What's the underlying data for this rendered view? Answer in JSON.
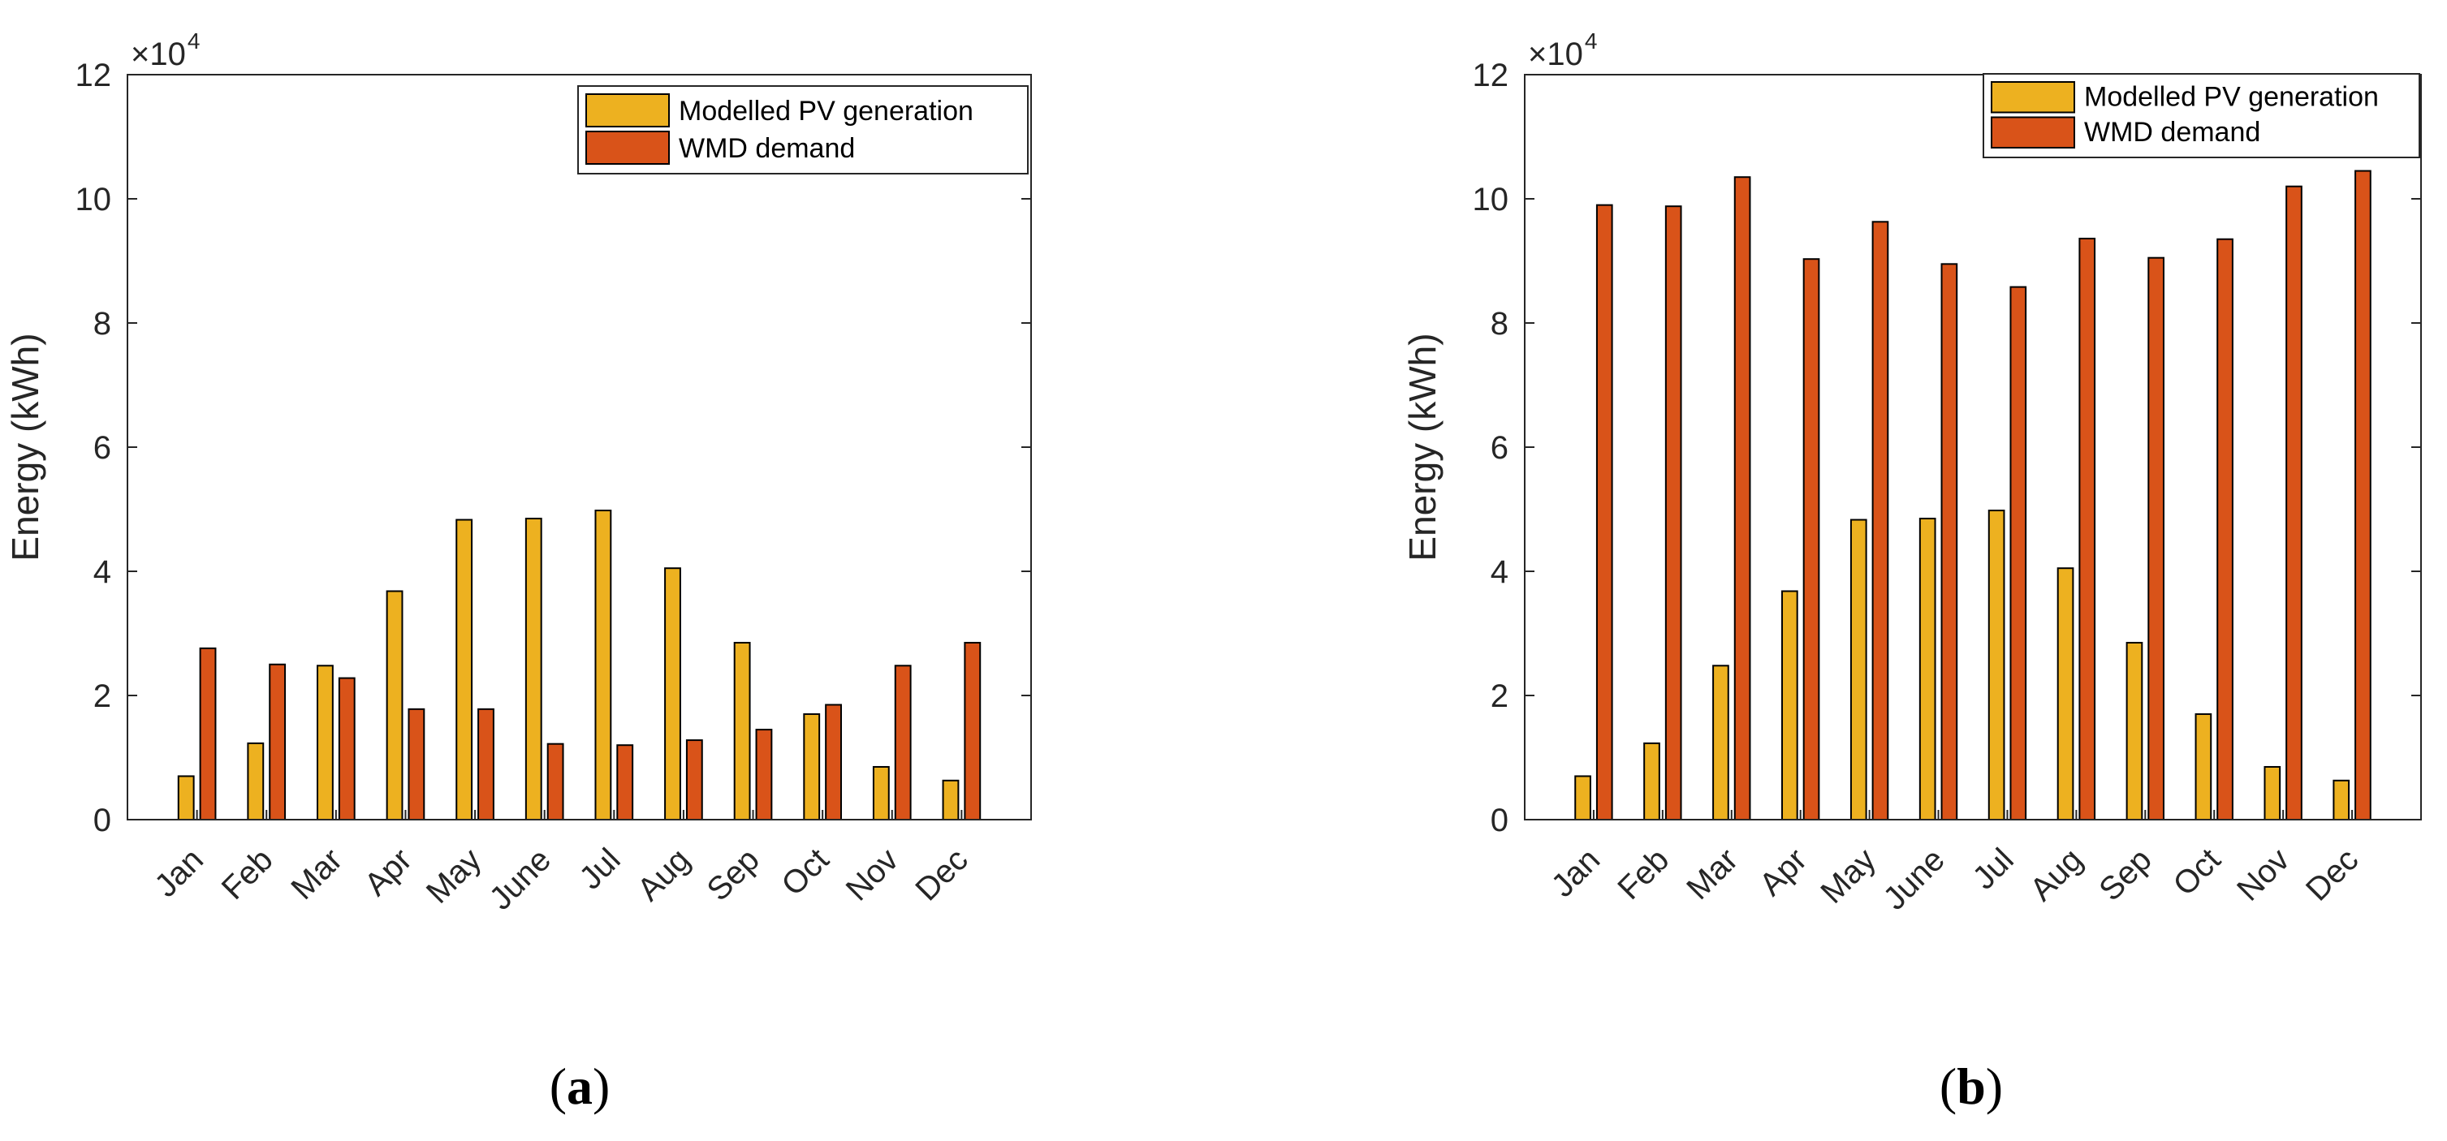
{
  "chart_data": [
    {
      "type": "bar",
      "panel_label": "a",
      "categories": [
        "Jan",
        "Feb",
        "Mar",
        "Apr",
        "May",
        "June",
        "Jul",
        "Aug",
        "Sep",
        "Oct",
        "Nov",
        "Dec"
      ],
      "series": [
        {
          "name": "Modelled PV generation",
          "color": "#EDB120",
          "values": [
            7000,
            12300,
            24800,
            36800,
            48300,
            48500,
            49800,
            40500,
            28500,
            17000,
            8500,
            6300
          ]
        },
        {
          "name": "WMD demand",
          "color": "#D95319",
          "values": [
            27600,
            25000,
            22800,
            17800,
            17800,
            12200,
            12000,
            12800,
            14500,
            18500,
            24800,
            28500
          ]
        }
      ],
      "xlabel": "",
      "ylabel": "Energy (kWh)",
      "ylim": [
        0,
        120000
      ],
      "yticks": [
        0,
        20000,
        40000,
        60000,
        80000,
        100000,
        120000
      ],
      "ytick_labels": [
        "0",
        "2",
        "4",
        "6",
        "8",
        "10",
        "12"
      ],
      "multiplier_base": "×10",
      "multiplier_exponent": "4",
      "legend_position": "top-right",
      "grid": false
    },
    {
      "type": "bar",
      "panel_label": "b",
      "categories": [
        "Jan",
        "Feb",
        "Mar",
        "Apr",
        "May",
        "June",
        "Jul",
        "Aug",
        "Sep",
        "Oct",
        "Nov",
        "Dec"
      ],
      "series": [
        {
          "name": "Modelled PV generation",
          "color": "#EDB120",
          "values": [
            7000,
            12300,
            24800,
            36800,
            48300,
            48500,
            49800,
            40500,
            28500,
            17000,
            8500,
            6300
          ]
        },
        {
          "name": "WMD demand",
          "color": "#D95319",
          "values": [
            99000,
            98800,
            103500,
            90300,
            96300,
            89500,
            85800,
            93600,
            90500,
            93500,
            102000,
            104500
          ]
        }
      ],
      "xlabel": "",
      "ylabel": "Energy (kWh)",
      "ylim": [
        0,
        120000
      ],
      "yticks": [
        0,
        20000,
        40000,
        60000,
        80000,
        100000,
        120000
      ],
      "ytick_labels": [
        "0",
        "2",
        "4",
        "6",
        "8",
        "10",
        "12"
      ],
      "multiplier_base": "×10",
      "multiplier_exponent": "4",
      "legend_position": "top-right",
      "grid": false
    }
  ]
}
